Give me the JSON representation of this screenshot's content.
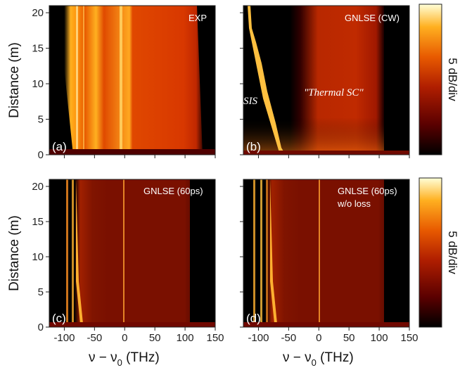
{
  "figure": {
    "ylabel": "Distance (m)",
    "xlabel_main": "ν − ν",
    "xlabel_sub": "0",
    "xlabel_unit": " (THz)",
    "colorbar_label": "5 dB/div",
    "panels": [
      {
        "label": "(a)",
        "note": "EXP",
        "note2": ""
      },
      {
        "label": "(b)",
        "note": "GNLSE (CW)",
        "note2": ""
      },
      {
        "label": "(c)",
        "note": "GNLSE (60ps)",
        "note2": ""
      },
      {
        "label": "(d)",
        "note": "GNLSE (60ps)",
        "note2": "w/o loss"
      }
    ],
    "annotations": {
      "sis": "SIS",
      "thermal": "\"Thermal SC\""
    }
  },
  "chart_data": {
    "type": "heatmap",
    "xlim": [
      -125,
      150
    ],
    "ylim": [
      0,
      21
    ],
    "xticks": [
      -100,
      -50,
      0,
      50,
      100,
      150
    ],
    "yticks": [
      0,
      5,
      10,
      15,
      20
    ],
    "colormap": [
      "#000000",
      "#5a0000",
      "#b01e00",
      "#e85a00",
      "#ffb020",
      "#ffffd8"
    ],
    "colorbar_units": "dB"
  }
}
